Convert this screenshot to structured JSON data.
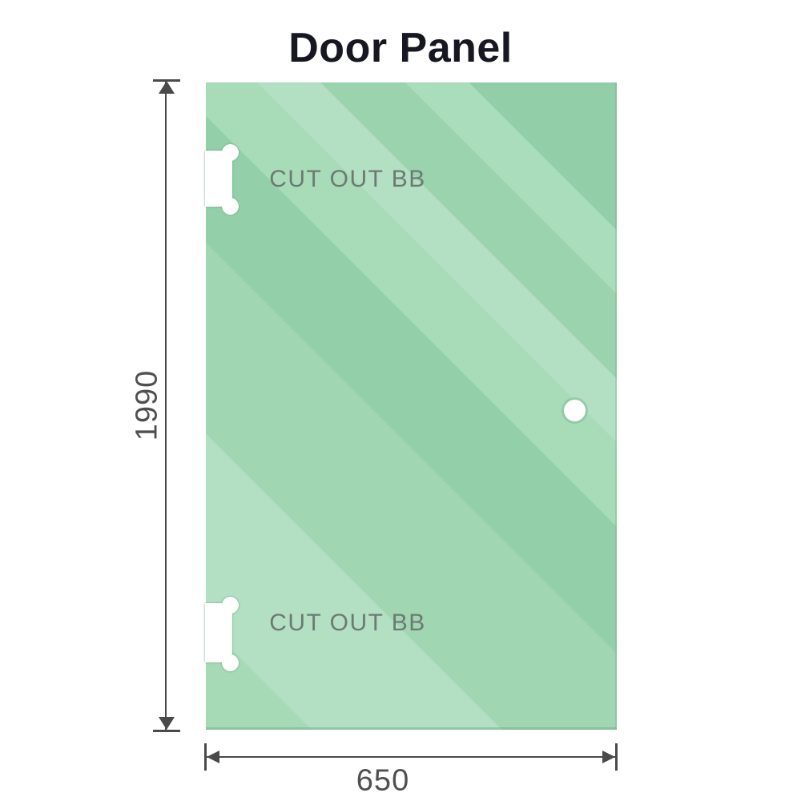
{
  "title": "Door Panel",
  "panel": {
    "height_label": "1990",
    "width_label": "650",
    "cutouts": {
      "top_label": "CUT OUT BB",
      "bottom_label": "CUT OUT BB"
    }
  },
  "icons": {
    "arrow_up": "triangle-up",
    "arrow_down": "triangle-down",
    "arrow_left": "triangle-left",
    "arrow_right": "triangle-right"
  },
  "colors": {
    "glass_green_base": "#93d0a9",
    "glass_green_light": "#b3dfc2",
    "dimension_line": "#4a4a4a",
    "dimension_text": "#4f4f4f",
    "cutout_label_text": "#6c7a74",
    "title_text": "#171722"
  }
}
